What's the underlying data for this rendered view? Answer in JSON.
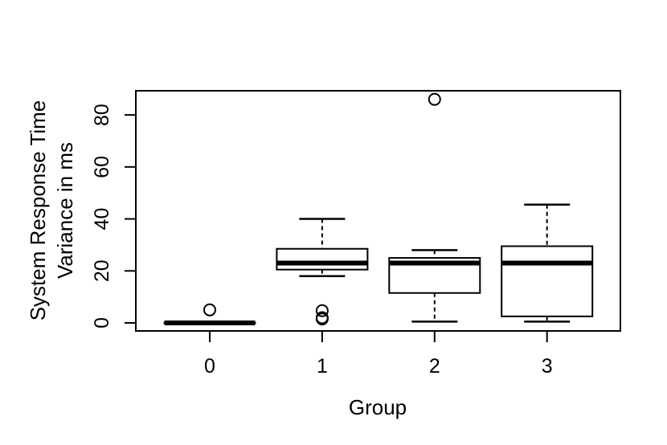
{
  "figure": {
    "background": "#ffffff",
    "foreground": "#000000"
  },
  "chart_data": {
    "type": "boxplot",
    "title": "",
    "xlabel": "Group",
    "ylabel_lines": [
      "System Response Time",
      "Variance in ms"
    ],
    "ylabel": "System Response Time Variance in ms",
    "categories": [
      "0",
      "1",
      "2",
      "3"
    ],
    "y_ticks": [
      0,
      20,
      40,
      60,
      80
    ],
    "ylim": [
      -3.1,
      89.3
    ],
    "grid": false,
    "legend": "none",
    "series": [
      {
        "group": "0",
        "whisker_low": 0,
        "q1": 0,
        "median": 0,
        "q3": 0,
        "whisker_high": 0,
        "outliers": [
          5
        ]
      },
      {
        "group": "1",
        "whisker_low": 18,
        "q1": 20.5,
        "median": 23,
        "q3": 28.5,
        "whisker_high": 40,
        "outliers": [
          4.7,
          2,
          1.5
        ]
      },
      {
        "group": "2",
        "whisker_low": 0.5,
        "q1": 11.5,
        "median": 23,
        "q3": 25,
        "whisker_high": 28,
        "outliers": [
          86
        ]
      },
      {
        "group": "3",
        "whisker_low": 0.5,
        "q1": 2.5,
        "median": 23,
        "q3": 29.5,
        "whisker_high": 45.5,
        "outliers": []
      }
    ]
  }
}
